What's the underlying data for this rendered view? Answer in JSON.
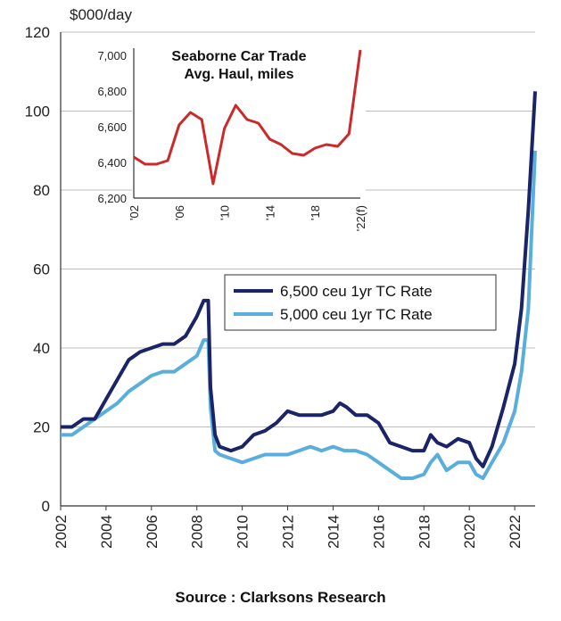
{
  "chart_data": [
    {
      "type": "line",
      "ylabel": "$000/day",
      "ylim": [
        0,
        120
      ],
      "yticks": [
        0,
        20,
        40,
        60,
        80,
        100,
        120
      ],
      "xlim": [
        2002,
        2022.9
      ],
      "xticks": [
        "2002",
        "2004",
        "2006",
        "2008",
        "2010",
        "2012",
        "2014",
        "2016",
        "2018",
        "2020",
        "2022"
      ],
      "grid": true,
      "legend_position": "center-right",
      "series": [
        {
          "name": "6,500 ceu 1yr TC Rate",
          "color": "#1a2466",
          "x": [
            2002,
            2002.5,
            2003,
            2003.5,
            2004,
            2004.5,
            2005,
            2005.5,
            2006,
            2006.5,
            2007,
            2007.5,
            2008,
            2008.3,
            2008.5,
            2008.6,
            2008.8,
            2009,
            2009.5,
            2010,
            2010.5,
            2011,
            2011.5,
            2012,
            2012.5,
            2013,
            2013.5,
            2014,
            2014.3,
            2014.6,
            2015,
            2015.5,
            2016,
            2016.5,
            2017,
            2017.5,
            2018,
            2018.3,
            2018.6,
            2019,
            2019.5,
            2020,
            2020.3,
            2020.6,
            2021,
            2021.5,
            2022,
            2022.3,
            2022.6,
            2022.9
          ],
          "values": [
            20,
            20,
            22,
            22,
            27,
            32,
            37,
            39,
            40,
            41,
            41,
            43,
            48,
            52,
            52,
            30,
            18,
            15,
            14,
            15,
            18,
            19,
            21,
            24,
            23,
            23,
            23,
            24,
            26,
            25,
            23,
            23,
            21,
            16,
            15,
            14,
            14,
            18,
            16,
            15,
            17,
            16,
            12,
            10,
            15,
            25,
            36,
            50,
            75,
            105
          ]
        },
        {
          "name": "5,000 ceu 1yr TC Rate",
          "color": "#5aaedc",
          "x": [
            2002,
            2002.5,
            2003,
            2003.5,
            2004,
            2004.5,
            2005,
            2005.5,
            2006,
            2006.5,
            2007,
            2007.5,
            2008,
            2008.3,
            2008.5,
            2008.6,
            2008.8,
            2009,
            2009.5,
            2010,
            2010.5,
            2011,
            2011.5,
            2012,
            2012.5,
            2013,
            2013.5,
            2014,
            2014.5,
            2015,
            2015.5,
            2016,
            2016.5,
            2017,
            2017.5,
            2018,
            2018.3,
            2018.6,
            2019,
            2019.5,
            2020,
            2020.3,
            2020.6,
            2021,
            2021.5,
            2022,
            2022.3,
            2022.6,
            2022.9
          ],
          "values": [
            18,
            18,
            20,
            22,
            24,
            26,
            29,
            31,
            33,
            34,
            34,
            36,
            38,
            42,
            42,
            25,
            14,
            13,
            12,
            11,
            12,
            13,
            13,
            13,
            14,
            15,
            14,
            15,
            14,
            14,
            13,
            11,
            9,
            7,
            7,
            8,
            11,
            13,
            9,
            11,
            11,
            8,
            7,
            11,
            16,
            24,
            34,
            50,
            90
          ]
        }
      ]
    },
    {
      "type": "line",
      "title": "Seaborne Car Trade Avg. Haul, miles",
      "title_lines": [
        "Seaborne Car Trade",
        "Avg. Haul, miles"
      ],
      "ylim": [
        6200,
        7000
      ],
      "yticks": [
        "6,200",
        "6,400",
        "6,600",
        "6,800",
        "7,000"
      ],
      "ytick_values": [
        6200,
        6400,
        6600,
        6800,
        7000
      ],
      "xlim": [
        2002,
        2022
      ],
      "xticks": [
        "'02",
        "'06",
        "'10",
        "'14",
        "'18",
        "'22(f)"
      ],
      "xtick_values": [
        2002,
        2006,
        2010,
        2014,
        2018,
        2022
      ],
      "series": [
        {
          "color": "#cc2a2a",
          "x": [
            2002,
            2003,
            2004,
            2005,
            2006,
            2007,
            2008,
            2009,
            2010,
            2011,
            2012,
            2013,
            2014,
            2015,
            2016,
            2017,
            2018,
            2019,
            2020,
            2021,
            2022
          ],
          "values": [
            6430,
            6390,
            6390,
            6410,
            6610,
            6680,
            6640,
            6280,
            6590,
            6720,
            6640,
            6620,
            6530,
            6500,
            6450,
            6440,
            6480,
            6500,
            6490,
            6560,
            7030
          ]
        }
      ]
    }
  ],
  "source_text": "Source : Clarksons Research"
}
